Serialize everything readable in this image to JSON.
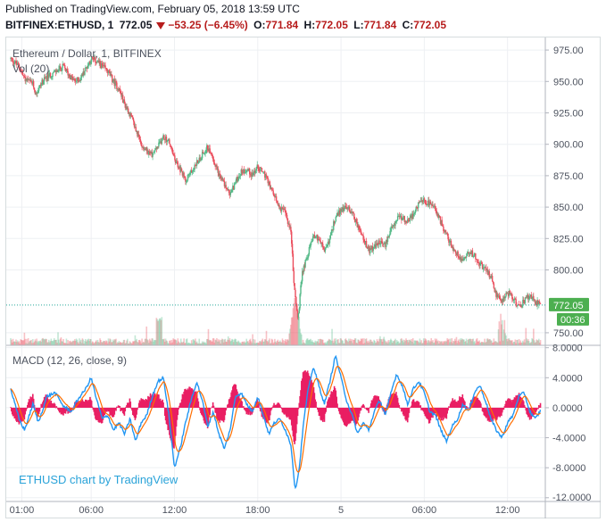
{
  "header": {
    "published": "Published on TradingView.com, February 05, 2018 13:59 UTC",
    "symbol": "BITFINEX:ETHUSD, 1",
    "last": "772.05",
    "change": "−53.25 (−6.45%)",
    "o_label": "O:",
    "o_value": "771.84",
    "h_label": "H:",
    "h_value": "772.05",
    "l_label": "L:",
    "l_value": "771.84",
    "c_label": "C:",
    "c_value": "772.05"
  },
  "price_pane": {
    "title": "Ethereum / Dollar, 1, BITFINEX",
    "volume_label": "Vol (20)",
    "last_price_label": "772.05",
    "countdown_label": "00:36"
  },
  "macd_pane": {
    "title": "MACD (12, 26, close, 9)"
  },
  "watermark": "ETHUSD chart by TradingView",
  "colors": {
    "up": "#53b987",
    "down": "#eb4d5c",
    "macd_line": "#2196f3",
    "signal_line": "#ff6d00",
    "histogram": "#e91e63",
    "last_price_bg": "#4caf50",
    "grid": "#eef0f3",
    "axis_text": "#4c525e"
  },
  "chart_data": [
    {
      "type": "candlestick",
      "title": "Ethereum / Dollar, 1, BITFINEX",
      "y_ticks": [
        "975.00",
        "950.00",
        "925.00",
        "900.00",
        "875.00",
        "850.00",
        "825.00",
        "800.00",
        "750.00"
      ],
      "ylim": [
        740,
        985
      ],
      "x_ticks": [
        "01:00",
        "06:00",
        "12:00",
        "18:00",
        "5",
        "06:00",
        "12:00"
      ],
      "x_tick_hours": [
        1,
        6,
        12,
        18,
        24,
        30,
        36
      ],
      "xlim_hours": [
        0.2,
        38.4
      ],
      "last_price": 772.05,
      "close_path": [
        [
          0.2,
          968
        ],
        [
          0.8,
          962
        ],
        [
          1.2,
          952
        ],
        [
          1.8,
          948
        ],
        [
          2.0,
          940
        ],
        [
          2.5,
          950
        ],
        [
          3.0,
          955
        ],
        [
          3.5,
          958
        ],
        [
          4.0,
          962
        ],
        [
          4.4,
          955
        ],
        [
          4.8,
          950
        ],
        [
          5.2,
          952
        ],
        [
          5.6,
          960
        ],
        [
          6.0,
          968
        ],
        [
          6.4,
          966
        ],
        [
          6.8,
          962
        ],
        [
          7.2,
          958
        ],
        [
          7.6,
          950
        ],
        [
          8.0,
          944
        ],
        [
          8.4,
          932
        ],
        [
          8.8,
          924
        ],
        [
          9.2,
          912
        ],
        [
          9.6,
          900
        ],
        [
          10.0,
          895
        ],
        [
          10.4,
          892
        ],
        [
          10.8,
          898
        ],
        [
          11.2,
          906
        ],
        [
          11.6,
          902
        ],
        [
          12.0,
          888
        ],
        [
          12.4,
          880
        ],
        [
          12.8,
          872
        ],
        [
          13.2,
          878
        ],
        [
          13.6,
          885
        ],
        [
          14.0,
          892
        ],
        [
          14.4,
          898
        ],
        [
          14.8,
          888
        ],
        [
          15.2,
          876
        ],
        [
          15.6,
          868
        ],
        [
          16.0,
          860
        ],
        [
          16.4,
          870
        ],
        [
          16.8,
          878
        ],
        [
          17.2,
          880
        ],
        [
          17.6,
          876
        ],
        [
          18.0,
          882
        ],
        [
          18.4,
          878
        ],
        [
          18.8,
          868
        ],
        [
          19.2,
          858
        ],
        [
          19.6,
          850
        ],
        [
          20.0,
          845
        ],
        [
          20.4,
          830
        ],
        [
          20.6,
          790
        ],
        [
          20.9,
          760
        ],
        [
          21.2,
          798
        ],
        [
          21.6,
          812
        ],
        [
          22.0,
          828
        ],
        [
          22.4,
          825
        ],
        [
          22.8,
          815
        ],
        [
          23.2,
          825
        ],
        [
          23.6,
          842
        ],
        [
          24.0,
          848
        ],
        [
          24.4,
          850
        ],
        [
          24.8,
          846
        ],
        [
          25.2,
          835
        ],
        [
          25.6,
          825
        ],
        [
          26.0,
          815
        ],
        [
          26.4,
          818
        ],
        [
          26.8,
          822
        ],
        [
          27.2,
          820
        ],
        [
          27.6,
          832
        ],
        [
          28.0,
          840
        ],
        [
          28.4,
          842
        ],
        [
          28.8,
          838
        ],
        [
          29.2,
          845
        ],
        [
          29.6,
          852
        ],
        [
          30.0,
          855
        ],
        [
          30.4,
          852
        ],
        [
          30.8,
          848
        ],
        [
          31.2,
          838
        ],
        [
          31.6,
          828
        ],
        [
          32.0,
          818
        ],
        [
          32.4,
          812
        ],
        [
          32.8,
          808
        ],
        [
          33.2,
          815
        ],
        [
          33.6,
          812
        ],
        [
          34.0,
          805
        ],
        [
          34.4,
          800
        ],
        [
          34.8,
          795
        ],
        [
          35.2,
          780
        ],
        [
          35.6,
          776
        ],
        [
          36.0,
          782
        ],
        [
          36.4,
          778
        ],
        [
          36.8,
          770
        ],
        [
          37.2,
          775
        ],
        [
          37.6,
          780
        ],
        [
          38.0,
          774
        ],
        [
          38.4,
          772
        ]
      ]
    },
    {
      "type": "bar",
      "title": "Vol (20)",
      "values_note": "volume bars, scaled; spikes around 11:00 and 20:40 and 35:40"
    },
    {
      "type": "line",
      "title": "MACD (12, 26, close, 9)",
      "y_ticks": [
        "8.0000",
        "4.0000",
        "0.0000",
        "-4.0000",
        "-8.0000",
        "-12.0000"
      ],
      "ylim": [
        -12.5,
        8.2
      ],
      "series": [
        {
          "name": "",
          "values": [
            [
              0.2,
              2.5
            ],
            [
              0.8,
              -1.5
            ],
            [
              1.2,
              -3.0
            ],
            [
              1.8,
              0.5
            ],
            [
              2.2,
              -2.0
            ],
            [
              2.8,
              1.5
            ],
            [
              3.4,
              2.0
            ],
            [
              4.0,
              0.2
            ],
            [
              4.6,
              -0.5
            ],
            [
              5.0,
              1.0
            ],
            [
              5.6,
              2.5
            ],
            [
              6.0,
              4.0
            ],
            [
              6.4,
              1.0
            ],
            [
              6.8,
              -1.5
            ],
            [
              7.2,
              -1.0
            ],
            [
              7.6,
              -3.0
            ],
            [
              8.0,
              -2.0
            ],
            [
              8.4,
              -3.5
            ],
            [
              8.8,
              -1.5
            ],
            [
              9.2,
              -4.5
            ],
            [
              9.6,
              -2.0
            ],
            [
              10.0,
              -1.0
            ],
            [
              10.4,
              1.5
            ],
            [
              10.8,
              3.5
            ],
            [
              11.2,
              4.0
            ],
            [
              11.6,
              -1.0
            ],
            [
              12.0,
              -8.0
            ],
            [
              12.4,
              -5.5
            ],
            [
              12.8,
              -2.0
            ],
            [
              13.2,
              1.0
            ],
            [
              13.6,
              3.5
            ],
            [
              14.0,
              1.0
            ],
            [
              14.4,
              -2.5
            ],
            [
              14.8,
              -0.5
            ],
            [
              15.2,
              -3.5
            ],
            [
              15.6,
              -5.5
            ],
            [
              16.0,
              -3.0
            ],
            [
              16.4,
              1.5
            ],
            [
              16.8,
              2.0
            ],
            [
              17.2,
              0.5
            ],
            [
              17.6,
              -0.5
            ],
            [
              18.0,
              1.5
            ],
            [
              18.4,
              -1.0
            ],
            [
              18.8,
              -3.5
            ],
            [
              19.2,
              -2.0
            ],
            [
              19.6,
              -1.5
            ],
            [
              20.0,
              -3.0
            ],
            [
              20.4,
              -5.0
            ],
            [
              20.7,
              -11.0
            ],
            [
              21.0,
              -8.0
            ],
            [
              21.3,
              -2.0
            ],
            [
              21.6,
              2.0
            ],
            [
              22.0,
              5.5
            ],
            [
              22.4,
              3.0
            ],
            [
              22.8,
              0.5
            ],
            [
              23.2,
              3.5
            ],
            [
              23.6,
              7.0
            ],
            [
              24.0,
              4.0
            ],
            [
              24.4,
              1.0
            ],
            [
              24.8,
              -1.0
            ],
            [
              25.2,
              -3.5
            ],
            [
              25.6,
              -2.0
            ],
            [
              26.0,
              -3.0
            ],
            [
              26.4,
              -0.5
            ],
            [
              26.8,
              1.0
            ],
            [
              27.2,
              -1.0
            ],
            [
              27.6,
              2.0
            ],
            [
              28.0,
              4.5
            ],
            [
              28.4,
              3.0
            ],
            [
              28.8,
              0.5
            ],
            [
              29.2,
              2.5
            ],
            [
              29.6,
              3.5
            ],
            [
              30.0,
              2.0
            ],
            [
              30.4,
              -0.5
            ],
            [
              30.8,
              -1.0
            ],
            [
              31.2,
              -3.0
            ],
            [
              31.6,
              -4.5
            ],
            [
              32.0,
              -2.5
            ],
            [
              32.4,
              -1.5
            ],
            [
              32.8,
              0.5
            ],
            [
              33.2,
              -0.5
            ],
            [
              33.6,
              2.0
            ],
            [
              34.0,
              3.0
            ],
            [
              34.4,
              1.0
            ],
            [
              34.8,
              -1.5
            ],
            [
              35.2,
              -3.0
            ],
            [
              35.6,
              -4.0
            ],
            [
              36.0,
              -2.0
            ],
            [
              36.4,
              -1.0
            ],
            [
              36.8,
              1.5
            ],
            [
              37.2,
              2.0
            ],
            [
              37.6,
              -0.5
            ],
            [
              38.0,
              -1.5
            ],
            [
              38.4,
              -0.3
            ]
          ]
        }
      ]
    }
  ]
}
